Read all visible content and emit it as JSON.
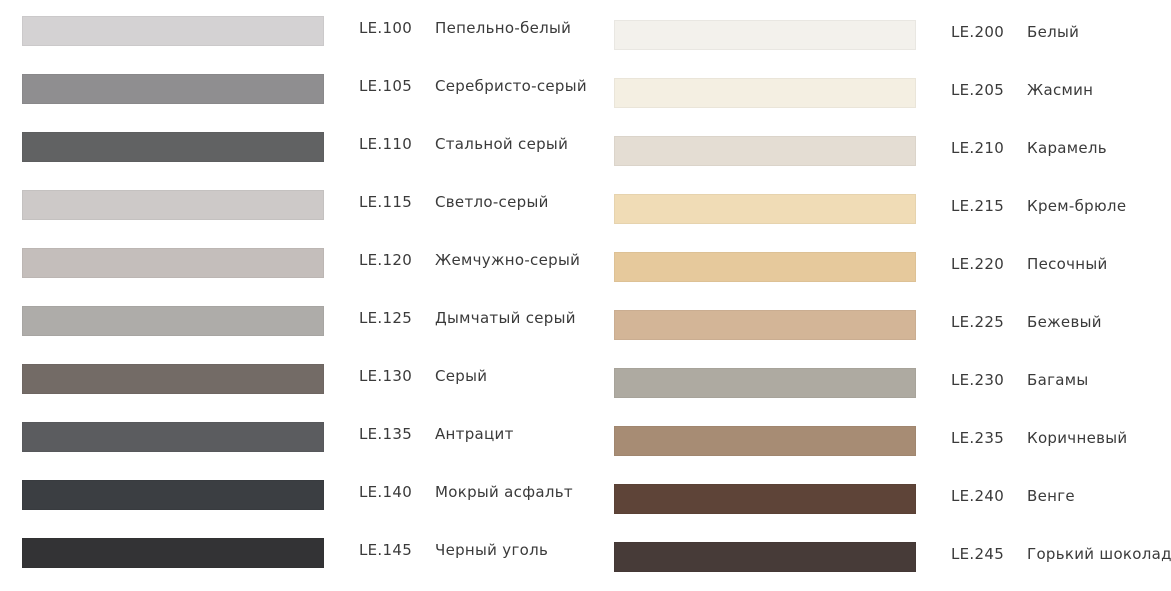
{
  "left_column": [
    {
      "code": "LE.100",
      "name": "Пепельно-белый",
      "color": "#d4d2d3"
    },
    {
      "code": "LE.105",
      "name": "Серебристо-серый",
      "color": "#8f8e90"
    },
    {
      "code": "LE.110",
      "name": "Стальной серый",
      "color": "#616263"
    },
    {
      "code": "LE.115",
      "name": "Светло-серый",
      "color": "#cdc9c8"
    },
    {
      "code": "LE.120",
      "name": "Жемчужно-серый",
      "color": "#c4bebb"
    },
    {
      "code": "LE.125",
      "name": "Дымчатый серый",
      "color": "#aeaca9"
    },
    {
      "code": "LE.130",
      "name": "Серый",
      "color": "#736b66"
    },
    {
      "code": "LE.135",
      "name": "Антрацит",
      "color": "#5b5c5f"
    },
    {
      "code": "LE.140",
      "name": "Мокрый асфальт",
      "color": "#3b3e42"
    },
    {
      "code": "LE.145",
      "name": "Черный уголь",
      "color": "#333335"
    }
  ],
  "right_column": [
    {
      "code": "LE.200",
      "name": "Белый",
      "color": "#f3f1ec"
    },
    {
      "code": "LE.205",
      "name": "Жасмин",
      "color": "#f4efe2"
    },
    {
      "code": "LE.210",
      "name": "Карамель",
      "color": "#e4ddd3"
    },
    {
      "code": "LE.215",
      "name": "Крем-брюле",
      "color": "#f0dcb6"
    },
    {
      "code": "LE.220",
      "name": "Песочный",
      "color": "#e6c99c"
    },
    {
      "code": "LE.225",
      "name": "Бежевый",
      "color": "#d3b597"
    },
    {
      "code": "LE.230",
      "name": "Багамы",
      "color": "#aeaaa1"
    },
    {
      "code": "LE.235",
      "name": "Коричневый",
      "color": "#a78c74"
    },
    {
      "code": "LE.240",
      "name": "Венге",
      "color": "#5e4438"
    },
    {
      "code": "LE.245",
      "name": "Горький шоколад",
      "color": "#473b38"
    }
  ]
}
